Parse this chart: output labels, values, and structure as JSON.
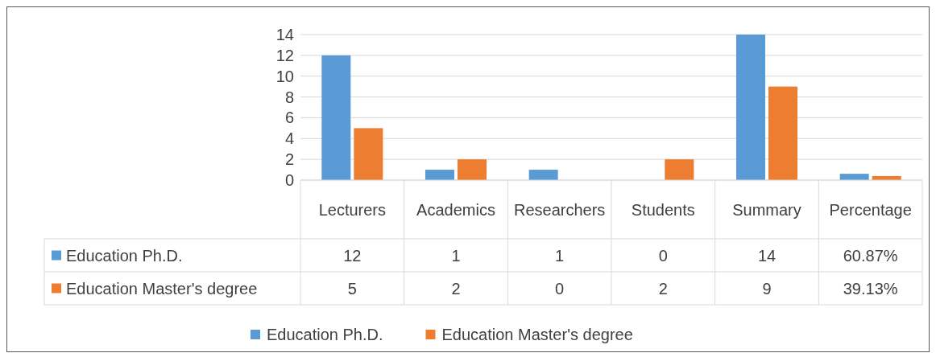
{
  "chart_data": {
    "type": "bar",
    "categories": [
      "Lecturers",
      "Academics",
      "Researchers",
      "Students",
      "Summary",
      "Percentage"
    ],
    "series": [
      {
        "name": "Education Ph.D.",
        "color": "#5b9bd5",
        "values": [
          12,
          1,
          1,
          0,
          14,
          0.6087
        ],
        "value_labels": [
          "12",
          "1",
          "1",
          "0",
          "14",
          "60.87%"
        ]
      },
      {
        "name": "Education Master's degree",
        "color": "#ed7d31",
        "values": [
          5,
          2,
          0,
          2,
          9,
          0.3913
        ],
        "value_labels": [
          "5",
          "2",
          "0",
          "2",
          "9",
          "39.13%"
        ]
      }
    ],
    "ylim": [
      0,
      14
    ],
    "yticks": [
      0,
      2,
      4,
      6,
      8,
      10,
      12,
      14
    ],
    "grid": "y",
    "legend": "bottom"
  }
}
